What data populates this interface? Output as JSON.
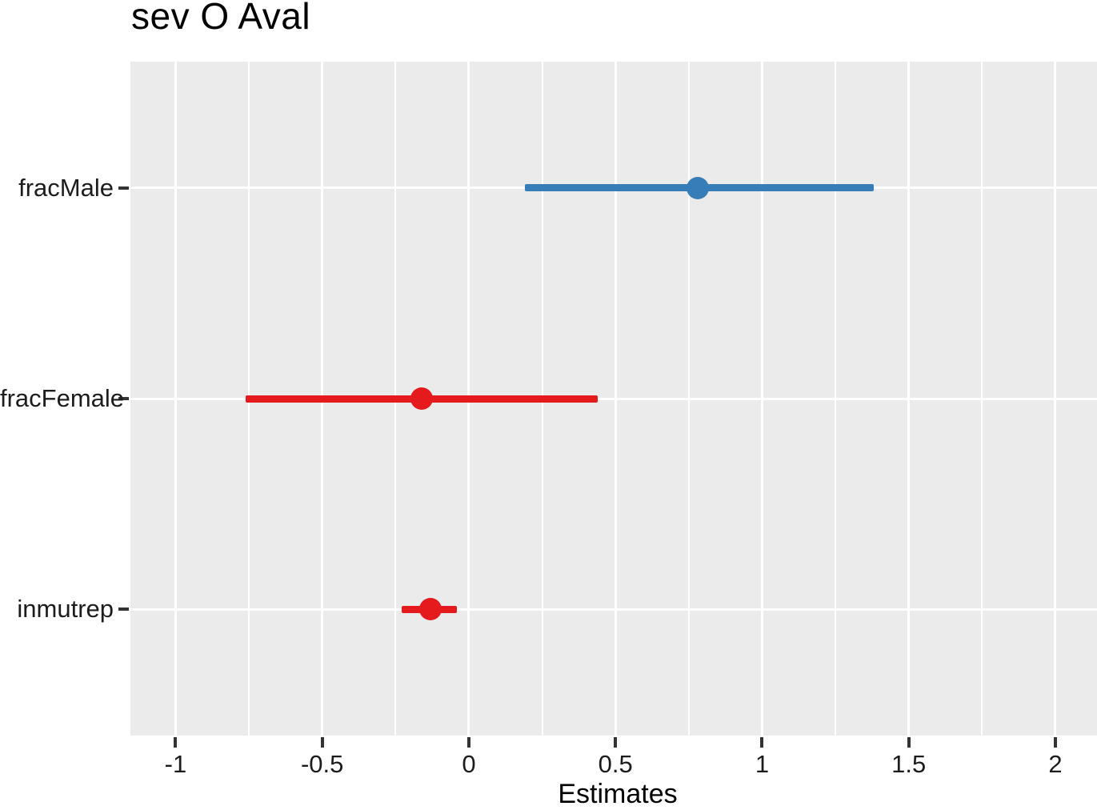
{
  "chart_data": {
    "type": "scatter",
    "subtype": "coefficient-forest-plot",
    "title": "sev O Aval",
    "xlabel": "Estimates",
    "ylabel": "",
    "xlim": [
      -1.154,
      2.142
    ],
    "x_major_ticks": [
      -1,
      -0.5,
      0,
      0.5,
      1,
      1.5,
      2
    ],
    "x_tick_labels": [
      "-1",
      "-0.5",
      "0",
      "0.5",
      "1",
      "1.5",
      "2"
    ],
    "x_minor_ticks": [
      -0.75,
      -0.25,
      0.25,
      0.75,
      1.25,
      1.75
    ],
    "legend": "none",
    "grid": true,
    "rows": [
      {
        "label": "fracMale",
        "estimate": 0.78,
        "ci_low": 0.19,
        "ci_high": 1.38,
        "color": "#377EB8"
      },
      {
        "label": "fracFemale",
        "estimate": -0.16,
        "ci_low": -0.76,
        "ci_high": 0.44,
        "color": "#E41A1C"
      },
      {
        "label": "inmutrep",
        "estimate": -0.13,
        "ci_low": -0.23,
        "ci_high": -0.04,
        "color": "#E41A1C"
      }
    ],
    "colors": {
      "positive_estimate": "#377EB8",
      "negative_estimate": "#E41A1C",
      "panel_background": "#EBEBEB",
      "gridline": "#FFFFFF",
      "tick_mark": "#333333",
      "tick_label_text": "#1c1c1c",
      "title_text": "#000000"
    }
  }
}
